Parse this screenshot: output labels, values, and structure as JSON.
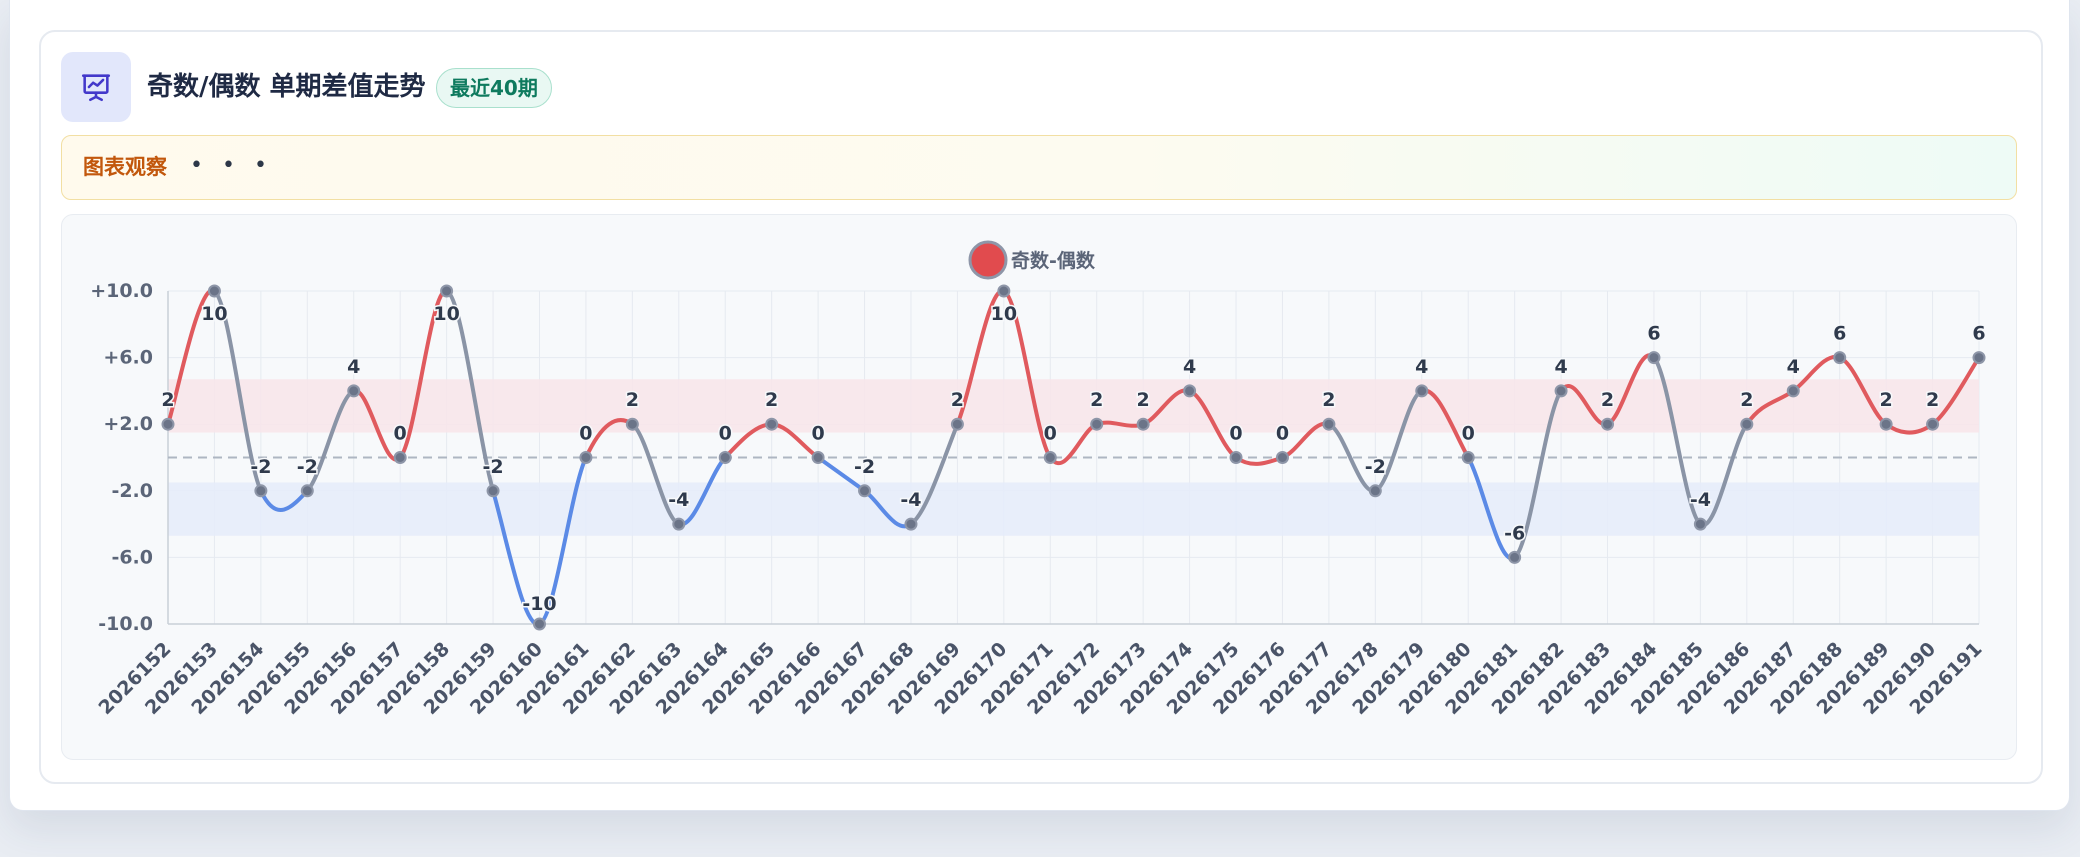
{
  "header": {
    "title": "奇数/偶数 单期差值走势",
    "badge": "最近40期",
    "icon": "presentation-chart-icon"
  },
  "observation": {
    "title": "图表观察",
    "more": "• • •"
  },
  "colors": {
    "positive": "#e05a5e",
    "negative": "#5b8ae6",
    "neutral": "#8a94a6",
    "positive_band": "#f7e6ea",
    "negative_band": "#e5ecf9"
  },
  "chart_data": {
    "type": "line",
    "series": [
      {
        "name": "奇数-偶数",
        "values": [
          2,
          10,
          -2,
          -2,
          4,
          0,
          10,
          -2,
          -10,
          0,
          2,
          -4,
          0,
          2,
          0,
          -2,
          -4,
          2,
          10,
          0,
          2,
          2,
          4,
          0,
          0,
          2,
          -2,
          4,
          0,
          -6,
          4,
          2,
          6,
          -4,
          2,
          4,
          6,
          2,
          2,
          6
        ]
      }
    ],
    "categories": [
      "2026152",
      "2026153",
      "2026154",
      "2026155",
      "2026156",
      "2026157",
      "2026158",
      "2026159",
      "2026160",
      "2026161",
      "2026162",
      "2026163",
      "2026164",
      "2026165",
      "2026166",
      "2026167",
      "2026168",
      "2026169",
      "2026170",
      "2026171",
      "2026172",
      "2026173",
      "2026174",
      "2026175",
      "2026176",
      "2026177",
      "2026178",
      "2026179",
      "2026180",
      "2026181",
      "2026182",
      "2026183",
      "2026184",
      "2026185",
      "2026186",
      "2026187",
      "2026188",
      "2026189",
      "2026190",
      "2026191"
    ],
    "y_ticks": [
      "+10.0",
      "+6.0",
      "+2.0",
      "-2.0",
      "-6.0",
      "-10.0"
    ],
    "ylim": [
      -10,
      10
    ],
    "grid": true,
    "legend": "top-center",
    "bands": [
      {
        "from": 1.5,
        "to": 4.7,
        "kind": "positive"
      },
      {
        "from": -1.5,
        "to": -4.7,
        "kind": "negative"
      }
    ],
    "reference_line": 0
  }
}
